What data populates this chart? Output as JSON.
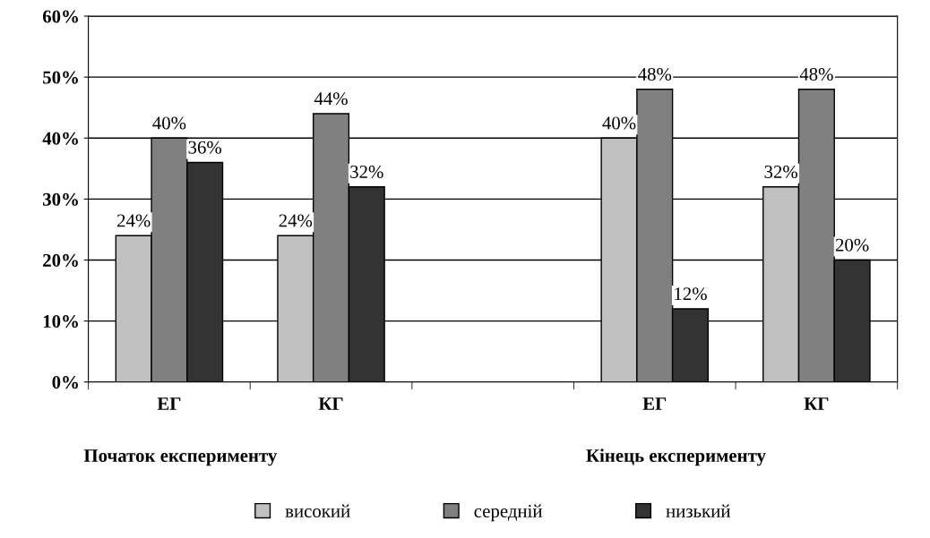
{
  "chart_data": {
    "type": "bar",
    "categories": [
      "ЕГ",
      "КГ",
      null,
      "ЕГ",
      "КГ"
    ],
    "series": [
      {
        "name": "високий",
        "color": "#c0c0c0",
        "values": [
          24,
          24,
          null,
          40,
          32
        ]
      },
      {
        "name": "середній",
        "color": "#808080",
        "values": [
          40,
          44,
          null,
          48,
          48
        ]
      },
      {
        "name": "низький",
        "color": "#333333",
        "values": [
          36,
          32,
          null,
          12,
          20
        ]
      }
    ],
    "ylim": [
      0,
      60
    ],
    "yticks": [
      {
        "value": 0,
        "label": "0%"
      },
      {
        "value": 10,
        "label": "10%"
      },
      {
        "value": 20,
        "label": "20%"
      },
      {
        "value": 30,
        "label": "30%"
      },
      {
        "value": 40,
        "label": "40%"
      },
      {
        "value": 50,
        "label": "50%"
      },
      {
        "value": 60,
        "label": "60%"
      }
    ],
    "value_labels": [
      [
        "24%",
        "24%",
        null,
        "40%",
        "32%"
      ],
      [
        "40%",
        "44%",
        null,
        "48%",
        "48%"
      ],
      [
        "36%",
        "32%",
        null,
        "12%",
        "20%"
      ]
    ],
    "annotations": [
      "Початок експерименту",
      "Кінець експерименту"
    ],
    "grid": "y",
    "legend": "bottom"
  }
}
